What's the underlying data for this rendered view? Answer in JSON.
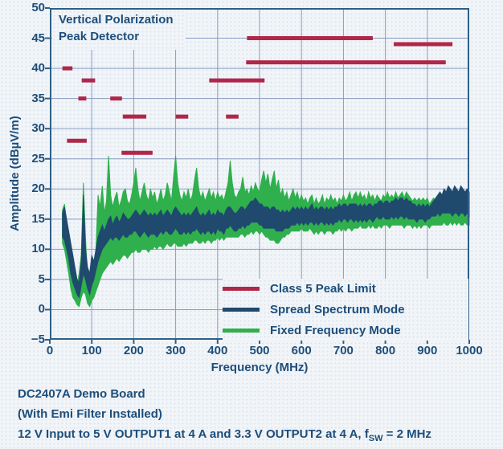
{
  "colors": {
    "background": "#f2f5f8",
    "text": "#1d4e7a",
    "gridline": "#8a9cc2",
    "plot_border": "#2f5f86",
    "limit_red": "#b0274a",
    "spread_spectrum_navy": "#1f4a6e",
    "fixed_frequency_green": "#2fb04d"
  },
  "caption": {
    "line1": "DC2407A Demo Board",
    "line2": "(With Emi Filter Installed)",
    "line3_prefix": "12 V Input to 5 V OUTPUT1 at 4 A and 3.3 V OUTPUT2 at 4 A, f",
    "line3_sub": "SW",
    "line3_suffix": " = 2 MHz"
  },
  "chart_data": {
    "type": "line",
    "title": "Vertical Polarization Peak Detector",
    "title_lines": [
      "Vertical Polarization",
      "Peak Detector"
    ],
    "xlabel": "Frequency (MHz)",
    "ylabel": "Amplitude (dBµV/m)",
    "xlim": [
      0,
      1000
    ],
    "ylim": [
      -5,
      50
    ],
    "x_ticks": [
      0,
      100,
      200,
      300,
      400,
      500,
      600,
      700,
      800,
      900,
      1000
    ],
    "x_tick_labels": [
      "0",
      "100",
      "200",
      "300",
      "400",
      "500",
      "600",
      "700",
      "800",
      "900",
      "1000"
    ],
    "y_ticks": [
      50,
      45,
      40,
      35,
      30,
      25,
      20,
      15,
      10,
      5,
      0,
      -5
    ],
    "y_tick_labels": [
      "50",
      "45",
      "40",
      "35",
      "30",
      "25",
      "20",
      "15",
      "10",
      "5",
      "0",
      "−5"
    ],
    "grid": true,
    "legend_position": "lower right",
    "legend": [
      {
        "label": "Class 5 Peak Limit",
        "color": "#b0274a"
      },
      {
        "label": "Spread Spectrum Mode",
        "color": "#1f4a6e"
      },
      {
        "label": "Fixed Frequency Mode",
        "color": "#2fb04d"
      }
    ],
    "limit_segments": [
      {
        "f1": 30,
        "f2": 54,
        "level": 40
      },
      {
        "f1": 41,
        "f2": 88,
        "level": 28
      },
      {
        "f1": 68,
        "f2": 87,
        "level": 35
      },
      {
        "f1": 76,
        "f2": 108,
        "level": 38
      },
      {
        "f1": 144,
        "f2": 172,
        "level": 35
      },
      {
        "f1": 171,
        "f2": 245,
        "level": 26
      },
      {
        "f1": 174,
        "f2": 230,
        "level": 32
      },
      {
        "f1": 300,
        "f2": 330,
        "level": 32
      },
      {
        "f1": 380,
        "f2": 512,
        "level": 38
      },
      {
        "f1": 420,
        "f2": 450,
        "level": 32
      },
      {
        "f1": 468,
        "f2": 944,
        "level": 41
      },
      {
        "f1": 470,
        "f2": 770,
        "level": 45
      },
      {
        "f1": 820,
        "f2": 960,
        "level": 44
      }
    ],
    "series": [
      {
        "id": "fixed-frequency-mode",
        "name": "Fixed Frequency Mode",
        "color": "#2fb04d",
        "x_start": 30,
        "x_step": 5,
        "upper": [
          16.5,
          17.5,
          14,
          12,
          9,
          7,
          5.5,
          4,
          6,
          9,
          21,
          12,
          5,
          4.5,
          8,
          6,
          10,
          19,
          17,
          20.5,
          16,
          18,
          25.5,
          19,
          17,
          18.5,
          19.5,
          17,
          18,
          19.5,
          20,
          18,
          17.5,
          19,
          21,
          23.5,
          20,
          18,
          19.5,
          21,
          19,
          18,
          20,
          18.5,
          19.5,
          17.5,
          18.5,
          20,
          18,
          19,
          21,
          19.5,
          18,
          22,
          25.5,
          21,
          19,
          18,
          19.5,
          18.5,
          20,
          18,
          19,
          21.5,
          23.5,
          20,
          18.5,
          19.5,
          18,
          19,
          20,
          18.5,
          19.5,
          18,
          19.5,
          18.5,
          19,
          18,
          19.5,
          21,
          24.7,
          21,
          19,
          18.5,
          19.5,
          20,
          22,
          19.5,
          20,
          19,
          20.5,
          19.5,
          21,
          20,
          19.5,
          21.5,
          23,
          21,
          22.5,
          20,
          21.5,
          23,
          20,
          21.5,
          19,
          20,
          18.5,
          19.5,
          18,
          19,
          20,
          18.5,
          19.5,
          18,
          19,
          18,
          18.5,
          17.5,
          18.5,
          19,
          17.5,
          18.5,
          17.5,
          18,
          19,
          17.5,
          18.5,
          18,
          19,
          18,
          18.5,
          17.5,
          18.5,
          18,
          19,
          18,
          18.5,
          19.5,
          18,
          19,
          19.5,
          18.5,
          19.5,
          18.5,
          19,
          18,
          19.5,
          18.5,
          19,
          18,
          19,
          18.5,
          18,
          19,
          18.5,
          19.5,
          18.5,
          19,
          18.5,
          19.5,
          18.5,
          19,
          19.5,
          18.5,
          19.5,
          19,
          18.5,
          18,
          18.5,
          18,
          18.5,
          18,
          18.5,
          18,
          18.5,
          17.5,
          18,
          18.5,
          18,
          17.5,
          18,
          17.5,
          18,
          17.5,
          17,
          17.5,
          17,
          17.5,
          17,
          17.5,
          17,
          16.5,
          17,
          16.5,
          16
        ],
        "lower": [
          11,
          10,
          8,
          6,
          3.5,
          2,
          1.5,
          0.8,
          0.5,
          2,
          3,
          2.5,
          1,
          0.5,
          1.5,
          2,
          3,
          4,
          5,
          6,
          6.5,
          7,
          7.5,
          8,
          7.5,
          8,
          8.5,
          8,
          8.5,
          9,
          9,
          8.5,
          9,
          9.5,
          9.5,
          10,
          9.5,
          9.5,
          10,
          10,
          10,
          9.5,
          10,
          10,
          10.5,
          10,
          10.5,
          10.5,
          10,
          10.5,
          11,
          10.5,
          10.5,
          11,
          11,
          10.5,
          10.5,
          10.5,
          11,
          10.5,
          11,
          11,
          11,
          11.5,
          11.5,
          11,
          11,
          11.5,
          11,
          11.5,
          11.5,
          11,
          11.5,
          11.5,
          12,
          11.5,
          12,
          11.5,
          12,
          12,
          12,
          12,
          12,
          12,
          12,
          12.5,
          12.5,
          12,
          12.5,
          12.5,
          13,
          12.5,
          13,
          13,
          12.5,
          13,
          12.5,
          12,
          12,
          11.5,
          11.5,
          11.5,
          11,
          11,
          11.5,
          12,
          12,
          12.5,
          12.5,
          13,
          13,
          13,
          13,
          13,
          13.5,
          13,
          13,
          13,
          13.5,
          13,
          12.5,
          13,
          12.5,
          13,
          13,
          12.5,
          13,
          13,
          13,
          12.5,
          13,
          13,
          13.5,
          13,
          13.5,
          13,
          13.5,
          13.5,
          13,
          13.5,
          13.5,
          13.5,
          14,
          13.5,
          13.5,
          13.5,
          14,
          13.5,
          14,
          13.5,
          13.5,
          14,
          13.5,
          14,
          14,
          14,
          13.5,
          14,
          14,
          14,
          14,
          14,
          14,
          13.5,
          14,
          14,
          14,
          13.5,
          14,
          13.5,
          14,
          13.5,
          14,
          14,
          14,
          13.5,
          14,
          14,
          14,
          14,
          14,
          14,
          14.5,
          14,
          14,
          14.5,
          14,
          14.5,
          14,
          14.5,
          14,
          14,
          14.5,
          14,
          14
        ]
      },
      {
        "id": "spread-spectrum-mode",
        "name": "Spread Spectrum Mode",
        "color": "#1f4a6e",
        "x_start": 30,
        "x_step": 5,
        "upper": [
          16,
          17,
          15,
          13,
          11,
          9,
          7,
          5,
          4.5,
          8,
          19,
          10,
          7,
          6,
          9,
          8,
          10,
          12,
          13,
          14,
          13,
          14,
          15,
          15.5,
          14,
          15,
          15.5,
          14.5,
          15,
          16,
          15.5,
          15,
          15,
          15.5,
          16,
          16.5,
          16,
          15.5,
          16,
          16.5,
          16,
          15.5,
          16,
          15.5,
          16,
          15.5,
          16,
          16.5,
          15.5,
          16,
          16.5,
          16,
          15.5,
          16.5,
          17,
          16.5,
          16,
          15.5,
          16,
          15.5,
          16,
          15.5,
          16,
          16.5,
          17,
          16,
          15.5,
          16,
          15.5,
          16,
          16.5,
          15.5,
          16,
          15.5,
          16.5,
          16,
          16,
          15.5,
          16.5,
          17,
          17,
          16.5,
          16,
          16,
          16.5,
          17,
          17,
          16.5,
          17,
          17.5,
          18,
          18,
          18.5,
          18,
          17.5,
          17.5,
          17,
          17,
          17,
          16.5,
          17,
          17,
          16.5,
          16.5,
          16,
          16.5,
          16,
          16.5,
          16,
          16.5,
          17,
          16.5,
          17,
          16.5,
          17,
          16.5,
          17,
          16.5,
          17,
          17.5,
          16.5,
          17,
          16.5,
          17,
          17,
          16.5,
          17,
          16.5,
          17,
          16.5,
          17,
          17,
          17.5,
          17,
          17.5,
          17.5,
          17,
          17.5,
          17.5,
          17.5,
          17.5,
          17,
          17.5,
          17,
          17.5,
          17,
          17.5,
          17.5,
          17,
          17.5,
          17.5,
          18,
          18,
          17.5,
          18,
          18,
          17.5,
          18,
          18,
          18.5,
          18,
          18.5,
          18.5,
          18,
          18.5,
          18,
          18,
          17.5,
          17.5,
          17,
          17.5,
          17,
          17.5,
          17,
          17.5,
          17,
          17.5,
          18,
          18.5,
          19,
          19.5,
          19,
          20,
          19.5,
          20.5,
          20,
          19.5,
          20.5,
          20,
          19.5,
          20.5,
          20,
          19.5,
          20,
          19.5
        ],
        "lower": [
          12,
          11.5,
          10,
          8.5,
          6,
          4.5,
          3.5,
          2.5,
          2,
          4,
          6,
          5,
          3.5,
          2.5,
          4,
          5,
          6.5,
          8,
          9,
          10,
          10.5,
          11,
          11.5,
          12,
          11.5,
          12,
          12,
          11.5,
          12,
          12.5,
          12,
          12,
          12.5,
          12.5,
          13,
          13,
          12.5,
          12,
          12.5,
          13,
          12.5,
          12,
          12.5,
          12.5,
          12.5,
          12,
          12.5,
          13,
          12.5,
          13,
          13,
          12.5,
          12.5,
          13,
          13.5,
          13,
          12.5,
          12.5,
          13,
          12.5,
          13,
          12.5,
          13,
          13,
          13.5,
          13,
          12.5,
          13,
          12.5,
          13,
          13,
          12.5,
          13,
          12.5,
          13.5,
          13,
          13,
          12.5,
          13.5,
          13.5,
          14,
          13.5,
          13,
          13,
          13.5,
          13.5,
          14,
          13.5,
          14,
          14,
          14.5,
          14.5,
          14.5,
          14.5,
          14,
          14,
          13.5,
          13.5,
          13.5,
          13.5,
          13.5,
          13.5,
          13,
          13,
          13,
          13,
          13.5,
          13.5,
          13.5,
          14,
          14,
          14,
          14.5,
          14,
          14.5,
          14,
          14.5,
          14,
          14.5,
          14.5,
          14,
          14.5,
          14,
          14.5,
          14.5,
          14,
          14.5,
          14,
          14.5,
          14,
          14.5,
          14.5,
          15,
          14.5,
          15,
          15,
          14.5,
          15,
          15,
          14.5,
          15,
          14.5,
          15,
          14.5,
          15,
          14.5,
          15,
          15,
          14.5,
          15,
          15.5,
          15,
          15,
          15.5,
          15,
          15,
          15,
          15.5,
          15,
          15.5,
          15,
          15.5,
          15.5,
          15,
          15.5,
          15,
          15,
          15,
          15,
          14.5,
          15,
          15,
          15,
          14.5,
          15,
          15,
          15.5,
          15.5,
          15.5,
          16,
          15.5,
          16,
          16,
          16,
          16,
          16,
          15.5,
          16,
          16,
          15.5,
          16,
          16,
          15.5,
          16,
          15.5
        ]
      }
    ]
  }
}
